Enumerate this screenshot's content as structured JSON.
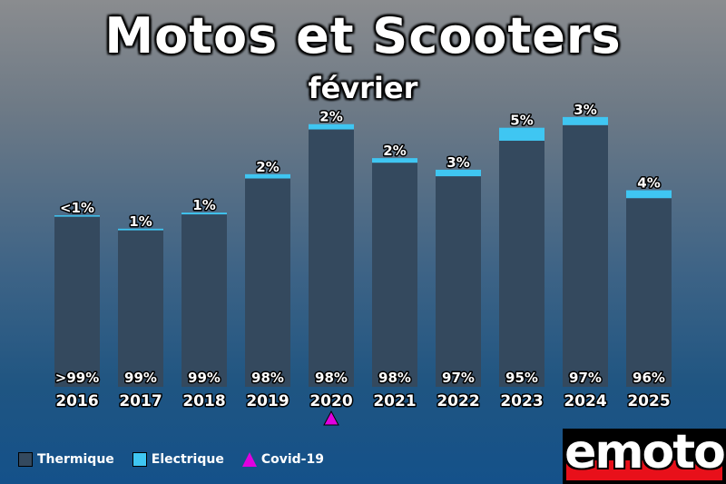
{
  "title": "Motos et Scooters",
  "subtitle": "février",
  "colors": {
    "thermique": "#34495e",
    "electrique": "#3fc6f2",
    "covid": "#e000e0"
  },
  "legend": {
    "thermique": "Thermique",
    "electrique": "Electrique",
    "covid": "Covid-19"
  },
  "logo": "emoto",
  "chart_data": {
    "type": "bar",
    "stacked": true,
    "categories": [
      "2016",
      "2017",
      "2018",
      "2019",
      "2020",
      "2021",
      "2022",
      "2023",
      "2024",
      "2025"
    ],
    "totals": [
      192,
      177,
      195,
      238,
      294,
      256,
      243,
      290,
      302,
      220
    ],
    "series": [
      {
        "name": "Thermique",
        "share_labels": [
          ">99%",
          "99%",
          "99%",
          "98%",
          "98%",
          "98%",
          "97%",
          "95%",
          "97%",
          "96%"
        ],
        "share": [
          99.7,
          99,
          99,
          98,
          98,
          98,
          97,
          95,
          97,
          96
        ]
      },
      {
        "name": "Electrique",
        "share_labels": [
          "<1%",
          "1%",
          "1%",
          "2%",
          "2%",
          "2%",
          "3%",
          "5%",
          "3%",
          "4%"
        ],
        "share": [
          0.3,
          1,
          1,
          2,
          2,
          2,
          3,
          5,
          3,
          4
        ]
      }
    ],
    "annotations": [
      {
        "category": "2020",
        "marker": "triangle",
        "label": "Covid-19"
      }
    ],
    "ylim": [
      0,
      310
    ],
    "grid": false,
    "legend_position": "bottom-left"
  }
}
